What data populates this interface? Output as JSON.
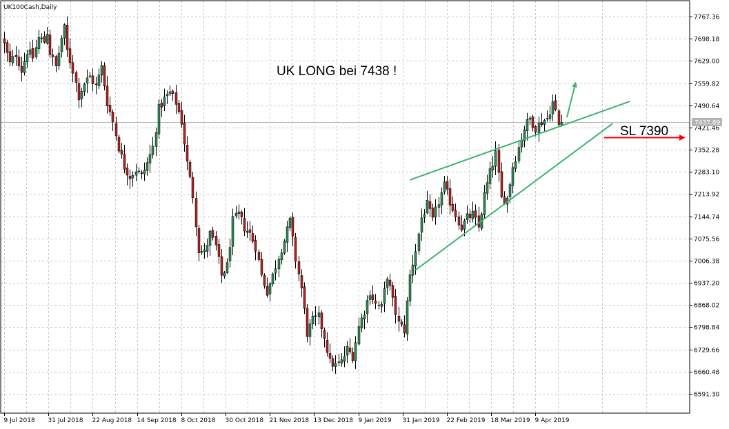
{
  "chart_data": {
    "type": "candlestick",
    "symbol": "UK100Cash,Daily",
    "y_ticks": [
      6591.3,
      6660.48,
      6729.66,
      6798.84,
      6868.02,
      6937.2,
      7006.38,
      7075.56,
      7144.74,
      7213.92,
      7283.1,
      7352.28,
      7421.46,
      7490.64,
      7559.82,
      7629.0,
      7698.18,
      7767.36
    ],
    "ylim": [
      6531.0,
      7817.0
    ],
    "grid": true,
    "x_tick_labels": [
      "9 Jul 2018",
      "31 Jul 2018",
      "22 Aug 2018",
      "14 Sep 2018",
      "8 Oct 2018",
      "30 Oct 2018",
      "21 Nov 2018",
      "13 Dec 2018",
      "9 Jan 2019",
      "31 Jan 2019",
      "22 Feb 2019",
      "18 Mar 2019",
      "9 Apr 2019"
    ],
    "current_price": 7437.89,
    "current_price_label": "7437.89",
    "annotation_title": "UK LONG bei 7438 !",
    "stop_loss_label": "SL 7390",
    "colors": {
      "bull": "#2e8b57",
      "bear": "#b22222",
      "wick": "#000000",
      "grid": "#c8c8c8",
      "trend": "#3cb371",
      "stop_arrow": "#ff0000",
      "price_line": "#b4b4b4",
      "price_box": "#b4b4b4"
    },
    "anchor_closes": [
      [
        0,
        7680
      ],
      [
        2,
        7620
      ],
      [
        4,
        7650
      ],
      [
        6,
        7600
      ],
      [
        8,
        7660
      ],
      [
        10,
        7640
      ],
      [
        12,
        7700
      ],
      [
        14,
        7690
      ],
      [
        15,
        7720
      ],
      [
        16,
        7655
      ],
      [
        18,
        7610
      ],
      [
        20,
        7700
      ],
      [
        21,
        7730
      ],
      [
        22,
        7660
      ],
      [
        24,
        7600
      ],
      [
        26,
        7520
      ],
      [
        28,
        7560
      ],
      [
        30,
        7580
      ],
      [
        32,
        7550
      ],
      [
        34,
        7610
      ],
      [
        36,
        7500
      ],
      [
        38,
        7440
      ],
      [
        40,
        7360
      ],
      [
        42,
        7300
      ],
      [
        44,
        7270
      ],
      [
        46,
        7290
      ],
      [
        48,
        7270
      ],
      [
        50,
        7310
      ],
      [
        52,
        7360
      ],
      [
        54,
        7480
      ],
      [
        56,
        7510
      ],
      [
        58,
        7530
      ],
      [
        60,
        7500
      ],
      [
        62,
        7440
      ],
      [
        64,
        7310
      ],
      [
        66,
        7210
      ],
      [
        68,
        7040
      ],
      [
        70,
        7030
      ],
      [
        72,
        7090
      ],
      [
        74,
        7050
      ],
      [
        76,
        6960
      ],
      [
        78,
        6990
      ],
      [
        80,
        7130
      ],
      [
        82,
        7150
      ],
      [
        84,
        7110
      ],
      [
        86,
        7090
      ],
      [
        88,
        7050
      ],
      [
        90,
        6960
      ],
      [
        92,
        6910
      ],
      [
        94,
        6960
      ],
      [
        96,
        7020
      ],
      [
        98,
        7070
      ],
      [
        100,
        7130
      ],
      [
        102,
        7010
      ],
      [
        104,
        6920
      ],
      [
        106,
        6780
      ],
      [
        108,
        6820
      ],
      [
        110,
        6830
      ],
      [
        112,
        6770
      ],
      [
        114,
        6690
      ],
      [
        116,
        6680
      ],
      [
        118,
        6690
      ],
      [
        120,
        6730
      ],
      [
        122,
        6710
      ],
      [
        124,
        6800
      ],
      [
        126,
        6850
      ],
      [
        128,
        6910
      ],
      [
        130,
        6870
      ],
      [
        132,
        6860
      ],
      [
        134,
        6960
      ],
      [
        136,
        6880
      ],
      [
        138,
        6810
      ],
      [
        140,
        6790
      ],
      [
        142,
        6960
      ],
      [
        144,
        7040
      ],
      [
        146,
        7140
      ],
      [
        148,
        7180
      ],
      [
        150,
        7130
      ],
      [
        152,
        7190
      ],
      [
        154,
        7240
      ],
      [
        156,
        7190
      ],
      [
        158,
        7150
      ],
      [
        160,
        7110
      ],
      [
        162,
        7140
      ],
      [
        164,
        7150
      ],
      [
        166,
        7110
      ],
      [
        168,
        7210
      ],
      [
        170,
        7280
      ],
      [
        172,
        7340
      ],
      [
        174,
        7200
      ],
      [
        176,
        7200
      ],
      [
        178,
        7300
      ],
      [
        180,
        7360
      ],
      [
        182,
        7420
      ],
      [
        184,
        7450
      ],
      [
        186,
        7420
      ],
      [
        188,
        7440
      ],
      [
        190,
        7450
      ],
      [
        192,
        7500
      ],
      [
        193,
        7470
      ],
      [
        194,
        7430
      ],
      [
        195,
        7438
      ]
    ],
    "trendlines": [
      {
        "name": "upper",
        "from": [
          142,
          7258
        ],
        "to": [
          219,
          7503
        ]
      },
      {
        "name": "lower",
        "from": [
          144,
          6977
        ],
        "to": [
          213,
          7434
        ]
      }
    ],
    "up_arrow": {
      "from": [
        197,
        7453
      ],
      "to": [
        200,
        7560
      ]
    },
    "sl_arrow": {
      "from_index": 210,
      "to_index": 238,
      "price": 7390
    }
  }
}
